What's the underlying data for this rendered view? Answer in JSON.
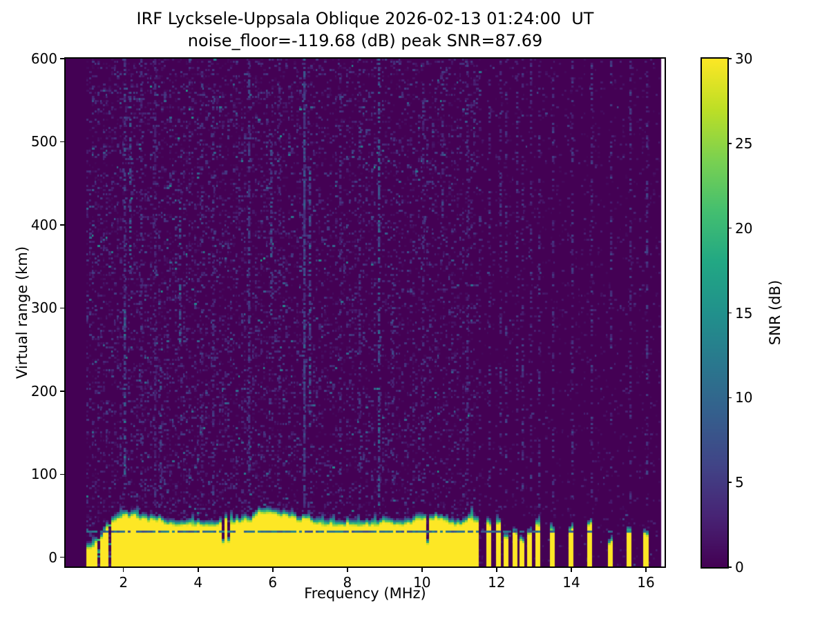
{
  "figure": {
    "title_line1": "IRF Lycksele-Uppsala Oblique 2026-02-13 01:24:00  UT",
    "title_line2": "noise_floor=-119.68 (dB) peak SNR=87.69"
  },
  "chart_data": {
    "type": "heatmap",
    "title": "IRF Lycksele-Uppsala Oblique 2026-02-13 01:24:00  UT",
    "subtitle": "noise_floor=-119.68 (dB) peak SNR=87.69",
    "xlabel": "Frequency (MHz)",
    "ylabel": "Virtual range (km)",
    "colorbar_label": "SNR (dB)",
    "colormap": "viridis",
    "xlim": [
      0.45,
      16.5
    ],
    "ylim": [
      -11,
      600
    ],
    "x_ticks": [
      2,
      4,
      6,
      8,
      10,
      12,
      14,
      16
    ],
    "y_ticks": [
      0,
      100,
      200,
      300,
      400,
      500,
      600
    ],
    "colorbar_ticks": [
      0,
      5,
      10,
      15,
      20,
      25,
      30
    ],
    "colorbar_range": [
      0,
      30
    ],
    "noise_floor_db": -119.68,
    "peak_snr_db": 87.69,
    "data_extent_mhz": [
      1.0,
      16.41
    ],
    "colormap_stops": [
      "#440154",
      "#482475",
      "#414487",
      "#355f8d",
      "#2a788e",
      "#21918c",
      "#22a884",
      "#44bf70",
      "#7ad151",
      "#bddf26",
      "#fde725"
    ],
    "background_snr_db": [
      0,
      3
    ],
    "features": {
      "ground_clutter_band": {
        "f_start_mhz": 1.0,
        "f_end_mhz": 11.5,
        "yellow_top_km_at_1mhz": 10,
        "yellow_top_km_typical": 44,
        "cap_top_km_typical": 62,
        "snr_db": 30
      },
      "clutter_notch_freqs_mhz": [
        1.32,
        1.62
      ],
      "inband_scatter_line_km": 33,
      "discrete_stripes_mhz": [
        11.78,
        12.04,
        12.26,
        12.49,
        12.67,
        12.88,
        13.1,
        13.5,
        14.0,
        14.5,
        15.05,
        15.55,
        16.0
      ],
      "stripe_width_mhz": 0.13,
      "noise_streaks": [
        {
          "f": 1.98,
          "km0": 80,
          "km1": 600,
          "prob": 0.45,
          "v0": 2.5,
          "v1": 8
        },
        {
          "f": 2.02,
          "km0": 100,
          "km1": 300,
          "prob": 0.5,
          "v0": 4,
          "v1": 13
        },
        {
          "f": 2.12,
          "km0": 340,
          "km1": 560,
          "prob": 0.5,
          "v0": 4,
          "v1": 12
        },
        {
          "f": 2.45,
          "km0": 80,
          "km1": 600,
          "prob": 0.35,
          "v0": 2,
          "v1": 6
        },
        {
          "f": 2.85,
          "km0": 60,
          "km1": 600,
          "prob": 0.5,
          "v0": 2,
          "v1": 5.5
        },
        {
          "f": 3.0,
          "km0": 60,
          "km1": 230,
          "prob": 0.45,
          "v0": 3,
          "v1": 9
        },
        {
          "f": 3.47,
          "km0": 250,
          "km1": 430,
          "prob": 0.45,
          "v0": 3.5,
          "v1": 11
        },
        {
          "f": 4.05,
          "km0": 60,
          "km1": 600,
          "prob": 0.3,
          "v0": 2,
          "v1": 6
        },
        {
          "f": 4.37,
          "km0": 60,
          "km1": 600,
          "prob": 0.4,
          "v0": 2,
          "v1": 6.5
        },
        {
          "f": 5.33,
          "km0": 60,
          "km1": 600,
          "prob": 0.45,
          "v0": 2.5,
          "v1": 7
        },
        {
          "f": 5.92,
          "km0": 290,
          "km1": 510,
          "prob": 0.4,
          "v0": 3,
          "v1": 9
        },
        {
          "f": 6.18,
          "km0": 60,
          "km1": 600,
          "prob": 0.3,
          "v0": 2,
          "v1": 6
        },
        {
          "f": 6.85,
          "km0": 60,
          "km1": 600,
          "prob": 0.8,
          "v0": 3.5,
          "v1": 9.5
        },
        {
          "f": 7.0,
          "km0": 140,
          "km1": 470,
          "prob": 0.5,
          "v0": 4,
          "v1": 11
        },
        {
          "f": 7.75,
          "km0": 60,
          "km1": 600,
          "prob": 0.3,
          "v0": 2,
          "v1": 6
        },
        {
          "f": 8.3,
          "km0": 60,
          "km1": 600,
          "prob": 0.35,
          "v0": 2,
          "v1": 6.5
        },
        {
          "f": 8.85,
          "km0": 60,
          "km1": 600,
          "prob": 0.55,
          "v0": 4.5,
          "v1": 11
        },
        {
          "f": 9.2,
          "km0": 60,
          "km1": 350,
          "prob": 0.3,
          "v0": 2.5,
          "v1": 7
        },
        {
          "f": 10.0,
          "km0": 60,
          "km1": 600,
          "prob": 0.3,
          "v0": 2,
          "v1": 6
        },
        {
          "f": 10.55,
          "km0": 380,
          "km1": 600,
          "prob": 0.35,
          "v0": 2.5,
          "v1": 7
        },
        {
          "f": 11.2,
          "km0": 60,
          "km1": 600,
          "prob": 0.3,
          "v0": 2,
          "v1": 6
        }
      ]
    }
  },
  "axes_text": {
    "xlabel": "Frequency (MHz)",
    "ylabel": "Virtual range (km)",
    "colorbar_label": "SNR (dB)"
  }
}
